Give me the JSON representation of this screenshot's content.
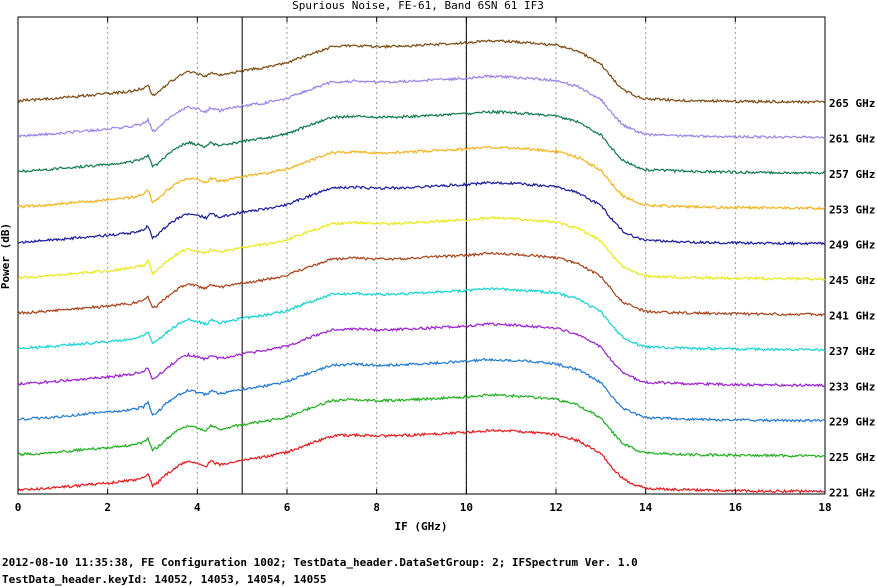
{
  "footer": {
    "line1": "2012-08-10 11:35:38, FE Configuration 1002; TestData_header.DataSetGroup: 2; IFSpectrum Ver. 1.0",
    "line2": "TestData_header.keyId: 14052, 14053, 14054, 14055"
  },
  "chart_data": {
    "type": "line",
    "title": "Spurious Noise, FE-61, Band 6SN 61 IF3",
    "xlabel": "IF (GHz)",
    "ylabel": "Power (dB)",
    "xlim": [
      0,
      18
    ],
    "x_ticks": [
      "0",
      "2",
      "4",
      "6",
      "8",
      "10",
      "12",
      "14",
      "16",
      "18"
    ],
    "grid": "vertical dashed at every 2 GHz",
    "markers_x": [
      5,
      10
    ],
    "profile_x": [
      0,
      0.5,
      1,
      1.5,
      2,
      2.5,
      2.8,
      2.9,
      3.0,
      3.1,
      3.3,
      3.6,
      3.8,
      4.0,
      4.2,
      4.3,
      4.5,
      5,
      5.5,
      6,
      6.5,
      7,
      7.5,
      8,
      8.5,
      9,
      9.5,
      10,
      10.5,
      11,
      11.5,
      12,
      12.5,
      13,
      13.3,
      13.5,
      13.8,
      14,
      15,
      16,
      17,
      18
    ],
    "profile_y": [
      0,
      0.3,
      0.8,
      1.3,
      1.8,
      2.4,
      3.2,
      4.3,
      1.2,
      1.8,
      4.0,
      6.5,
      7.5,
      7.0,
      6.3,
      7.4,
      6.6,
      7.8,
      8.6,
      9.8,
      12.0,
      14.0,
      14.3,
      14.0,
      14.1,
      14.4,
      14.7,
      15.0,
      15.5,
      15.3,
      14.9,
      14.4,
      12.8,
      9.5,
      5.2,
      2.8,
      1.2,
      0.4,
      0.0,
      -0.2,
      -0.3,
      -0.4
    ],
    "series": [
      {
        "name": "221 GHz",
        "color": "#e41a1c"
      },
      {
        "name": "225 GHz",
        "color": "#1fae1f"
      },
      {
        "name": "229 GHz",
        "color": "#1f78d4"
      },
      {
        "name": "233 GHz",
        "color": "#9b1fd4"
      },
      {
        "name": "237 GHz",
        "color": "#14d2d2"
      },
      {
        "name": "241 GHz",
        "color": "#a8421a"
      },
      {
        "name": "245 GHz",
        "color": "#e8e81a"
      },
      {
        "name": "249 GHz",
        "color": "#1a1aa0"
      },
      {
        "name": "253 GHz",
        "color": "#f2b41e"
      },
      {
        "name": "257 GHz",
        "color": "#0f7a4a"
      },
      {
        "name": "261 GHz",
        "color": "#9a82e8"
      },
      {
        "name": "265 GHz",
        "color": "#7a4a12"
      }
    ]
  }
}
